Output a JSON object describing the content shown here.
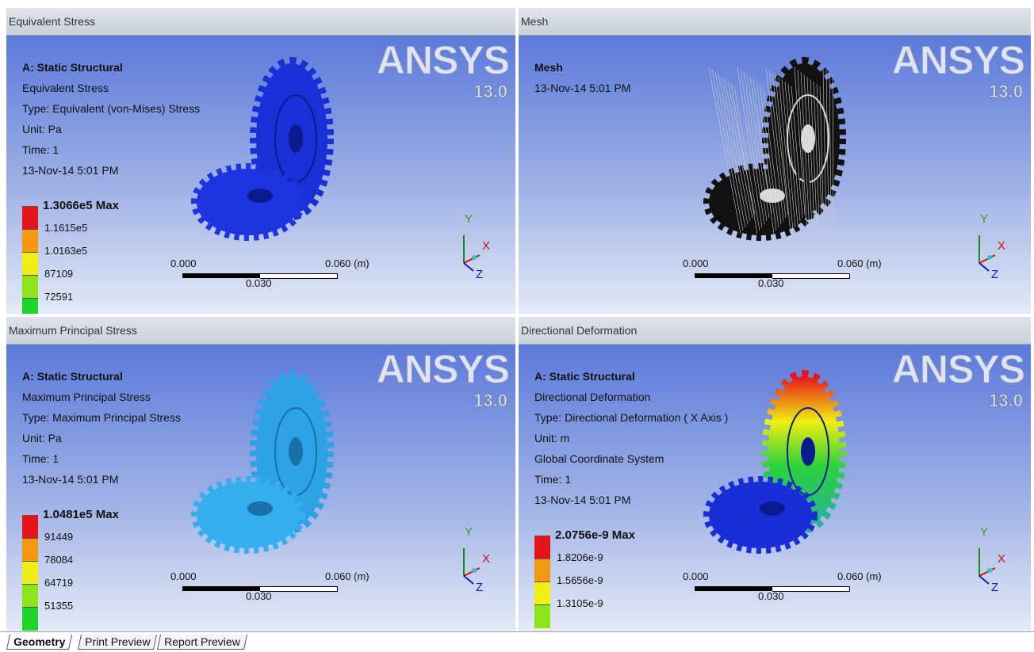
{
  "panels": [
    {
      "title": "Equivalent Stress",
      "heading": "A: Static Structural",
      "lines": [
        "Equivalent Stress",
        "Type: Equivalent (von-Mises) Stress",
        "Unit: Pa",
        "Time: 1",
        "13-Nov-14 5:01 PM"
      ],
      "legend": [
        "1.3066e5 Max",
        "1.1615e5",
        "1.0163e5",
        "87109",
        "72591"
      ],
      "logo": "ANSYS",
      "version": "13.0",
      "scale": [
        "0.000",
        "0.030",
        "0.060 (m)"
      ],
      "axes": [
        "Y",
        "X",
        "Z"
      ]
    },
    {
      "title": "Mesh",
      "heading": "Mesh",
      "lines": [
        "13-Nov-14 5:01 PM"
      ],
      "logo": "ANSYS",
      "version": "13.0",
      "scale": [
        "0.000",
        "0.030",
        "0.060 (m)"
      ],
      "axes": [
        "Y",
        "X",
        "Z"
      ]
    },
    {
      "title": "Maximum Principal Stress",
      "heading": "A: Static Structural",
      "lines": [
        "Maximum Principal Stress",
        "Type: Maximum Principal Stress",
        "Unit: Pa",
        "Time: 1",
        "13-Nov-14 5:01 PM"
      ],
      "legend": [
        "1.0481e5 Max",
        "91449",
        "78084",
        "64719",
        "51355"
      ],
      "logo": "ANSYS",
      "version": "13.0",
      "scale": [
        "0.000",
        "0.030",
        "0.060 (m)"
      ],
      "axes": [
        "Y",
        "X",
        "Z"
      ]
    },
    {
      "title": "Directional Deformation",
      "heading": "A: Static Structural",
      "lines": [
        "Directional Deformation",
        "Type: Directional Deformation ( X Axis )",
        "Unit: m",
        "Global Coordinate System",
        "Time: 1",
        "13-Nov-14 5:01 PM"
      ],
      "legend": [
        "2.0756e-9 Max",
        "1.8206e-9",
        "1.5656e-9",
        "1.3105e-9"
      ],
      "logo": "ANSYS",
      "version": "13.0",
      "scale": [
        "0.000",
        "0.030",
        "0.060 (m)"
      ],
      "axes": [
        "Y",
        "X",
        "Z"
      ]
    }
  ],
  "tabs": [
    "Geometry",
    "Print Preview",
    "Report Preview"
  ]
}
